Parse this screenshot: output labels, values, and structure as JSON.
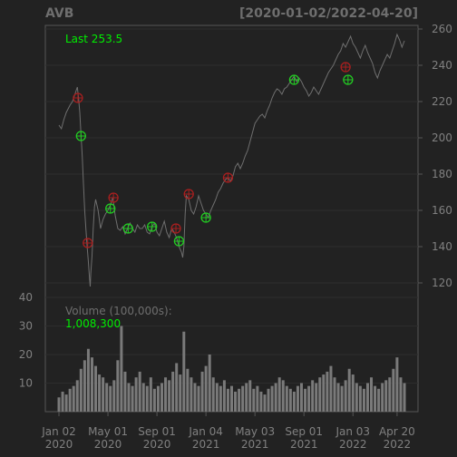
{
  "chart_data": {
    "type": "line",
    "title": "AVB",
    "date_range": "[2020-01-02/2022-04-20]",
    "last_label": "Last 253.5",
    "volume_label": "Volume (100,000s):",
    "volume_last": "1,008,300",
    "x_ticks": [
      {
        "top": "Jan 02",
        "bottom": "2020",
        "x": 0
      },
      {
        "top": "May 01",
        "bottom": "2020",
        "x": 4
      },
      {
        "top": "Sep 01",
        "bottom": "2020",
        "x": 8
      },
      {
        "top": "Jan 04",
        "bottom": "2021",
        "x": 12
      },
      {
        "top": "May 03",
        "bottom": "2021",
        "x": 16
      },
      {
        "top": "Sep 01",
        "bottom": "2021",
        "x": 20
      },
      {
        "top": "Jan 03",
        "bottom": "2022",
        "x": 24
      },
      {
        "top": "Apr 20",
        "bottom": "2022",
        "x": 27.6
      }
    ],
    "price_axis": {
      "ylim": [
        112,
        262
      ],
      "ticks": [
        120,
        140,
        160,
        180,
        200,
        220,
        240,
        260
      ]
    },
    "volume_axis": {
      "ylim": [
        0,
        40
      ],
      "ticks": [
        10,
        20,
        30,
        40
      ]
    },
    "price_series": [
      [
        0,
        207
      ],
      [
        0.2,
        205
      ],
      [
        0.4,
        210
      ],
      [
        0.6,
        214
      ],
      [
        0.9,
        218
      ],
      [
        1.1,
        220
      ],
      [
        1.3,
        224
      ],
      [
        1.5,
        228
      ],
      [
        1.6,
        222
      ],
      [
        1.7,
        214
      ],
      [
        1.8,
        202
      ],
      [
        1.9,
        190
      ],
      [
        2.0,
        175
      ],
      [
        2.1,
        160
      ],
      [
        2.2,
        150
      ],
      [
        2.3,
        140
      ],
      [
        2.4,
        132
      ],
      [
        2.5,
        122
      ],
      [
        2.55,
        118
      ],
      [
        2.6,
        125
      ],
      [
        2.7,
        135
      ],
      [
        2.8,
        150
      ],
      [
        2.9,
        162
      ],
      [
        3.0,
        166
      ],
      [
        3.2,
        160
      ],
      [
        3.4,
        150
      ],
      [
        3.6,
        155
      ],
      [
        3.8,
        158
      ],
      [
        4.0,
        160
      ],
      [
        4.2,
        163
      ],
      [
        4.4,
        167
      ],
      [
        4.6,
        157
      ],
      [
        4.8,
        150
      ],
      [
        5.0,
        149
      ],
      [
        5.2,
        151
      ],
      [
        5.4,
        147
      ],
      [
        5.6,
        150
      ],
      [
        5.8,
        153
      ],
      [
        6.0,
        150
      ],
      [
        6.2,
        148
      ],
      [
        6.4,
        152
      ],
      [
        6.6,
        150
      ],
      [
        6.8,
        150
      ],
      [
        7.0,
        152
      ],
      [
        7.2,
        148
      ],
      [
        7.4,
        147
      ],
      [
        7.6,
        151
      ],
      [
        7.8,
        153
      ],
      [
        8.0,
        148
      ],
      [
        8.2,
        146
      ],
      [
        8.4,
        150
      ],
      [
        8.6,
        154
      ],
      [
        8.8,
        148
      ],
      [
        9.0,
        145
      ],
      [
        9.2,
        150
      ],
      [
        9.4,
        148
      ],
      [
        9.6,
        145
      ],
      [
        9.8,
        140
      ],
      [
        10.0,
        137
      ],
      [
        10.1,
        134
      ],
      [
        10.2,
        140
      ],
      [
        10.3,
        158
      ],
      [
        10.4,
        168
      ],
      [
        10.6,
        166
      ],
      [
        10.8,
        160
      ],
      [
        11.0,
        158
      ],
      [
        11.2,
        162
      ],
      [
        11.4,
        168
      ],
      [
        11.6,
        164
      ],
      [
        11.8,
        160
      ],
      [
        12.0,
        158
      ],
      [
        12.2,
        156
      ],
      [
        12.4,
        160
      ],
      [
        12.6,
        163
      ],
      [
        12.8,
        166
      ],
      [
        13.0,
        170
      ],
      [
        13.2,
        172
      ],
      [
        13.4,
        175
      ],
      [
        13.6,
        177
      ],
      [
        13.8,
        178
      ],
      [
        14.0,
        176
      ],
      [
        14.2,
        179
      ],
      [
        14.4,
        184
      ],
      [
        14.6,
        186
      ],
      [
        14.8,
        183
      ],
      [
        15.0,
        186
      ],
      [
        15.2,
        190
      ],
      [
        15.4,
        193
      ],
      [
        15.6,
        198
      ],
      [
        15.8,
        203
      ],
      [
        16.0,
        208
      ],
      [
        16.2,
        210
      ],
      [
        16.4,
        212
      ],
      [
        16.6,
        213
      ],
      [
        16.8,
        211
      ],
      [
        17.0,
        215
      ],
      [
        17.2,
        218
      ],
      [
        17.4,
        222
      ],
      [
        17.6,
        225
      ],
      [
        17.8,
        227
      ],
      [
        18.0,
        226
      ],
      [
        18.2,
        224
      ],
      [
        18.4,
        227
      ],
      [
        18.6,
        228
      ],
      [
        18.8,
        230
      ],
      [
        19.0,
        232
      ],
      [
        19.2,
        234
      ],
      [
        19.4,
        231
      ],
      [
        19.6,
        233
      ],
      [
        19.8,
        231
      ],
      [
        20.0,
        228
      ],
      [
        20.2,
        226
      ],
      [
        20.4,
        223
      ],
      [
        20.6,
        225
      ],
      [
        20.8,
        228
      ],
      [
        21.0,
        226
      ],
      [
        21.2,
        224
      ],
      [
        21.4,
        227
      ],
      [
        21.6,
        230
      ],
      [
        21.8,
        233
      ],
      [
        22.0,
        236
      ],
      [
        22.2,
        238
      ],
      [
        22.4,
        240
      ],
      [
        22.6,
        243
      ],
      [
        22.8,
        246
      ],
      [
        23.0,
        248
      ],
      [
        23.2,
        252
      ],
      [
        23.4,
        250
      ],
      [
        23.6,
        253
      ],
      [
        23.8,
        256
      ],
      [
        24.0,
        252
      ],
      [
        24.2,
        250
      ],
      [
        24.4,
        247
      ],
      [
        24.6,
        244
      ],
      [
        24.8,
        248
      ],
      [
        25.0,
        251
      ],
      [
        25.2,
        247
      ],
      [
        25.4,
        244
      ],
      [
        25.6,
        241
      ],
      [
        25.8,
        236
      ],
      [
        26.0,
        233
      ],
      [
        26.2,
        237
      ],
      [
        26.4,
        240
      ],
      [
        26.6,
        243
      ],
      [
        26.8,
        246
      ],
      [
        27.0,
        244
      ],
      [
        27.2,
        248
      ],
      [
        27.4,
        252
      ],
      [
        27.6,
        257
      ],
      [
        27.8,
        254
      ],
      [
        28.0,
        250
      ],
      [
        28.2,
        253.5
      ]
    ],
    "volume_series": [
      [
        0,
        5
      ],
      [
        0.3,
        7
      ],
      [
        0.6,
        6
      ],
      [
        0.9,
        8
      ],
      [
        1.2,
        9
      ],
      [
        1.5,
        11
      ],
      [
        1.8,
        15
      ],
      [
        2.1,
        18
      ],
      [
        2.4,
        22
      ],
      [
        2.7,
        19
      ],
      [
        3.0,
        16
      ],
      [
        3.3,
        13
      ],
      [
        3.6,
        12
      ],
      [
        3.9,
        10
      ],
      [
        4.2,
        9
      ],
      [
        4.5,
        11
      ],
      [
        4.8,
        18
      ],
      [
        5.1,
        30
      ],
      [
        5.4,
        14
      ],
      [
        5.7,
        10
      ],
      [
        6.0,
        9
      ],
      [
        6.3,
        12
      ],
      [
        6.6,
        14
      ],
      [
        6.9,
        10
      ],
      [
        7.2,
        9
      ],
      [
        7.5,
        12
      ],
      [
        7.8,
        8
      ],
      [
        8.1,
        9
      ],
      [
        8.4,
        10
      ],
      [
        8.7,
        12
      ],
      [
        9.0,
        11
      ],
      [
        9.3,
        14
      ],
      [
        9.6,
        17
      ],
      [
        9.9,
        13
      ],
      [
        10.2,
        28
      ],
      [
        10.5,
        15
      ],
      [
        10.8,
        12
      ],
      [
        11.1,
        10
      ],
      [
        11.4,
        9
      ],
      [
        11.7,
        14
      ],
      [
        12.0,
        16
      ],
      [
        12.3,
        20
      ],
      [
        12.6,
        12
      ],
      [
        12.9,
        10
      ],
      [
        13.2,
        9
      ],
      [
        13.5,
        11
      ],
      [
        13.8,
        8
      ],
      [
        14.1,
        9
      ],
      [
        14.4,
        7
      ],
      [
        14.7,
        8
      ],
      [
        15.0,
        9
      ],
      [
        15.3,
        10
      ],
      [
        15.6,
        11
      ],
      [
        15.9,
        8
      ],
      [
        16.2,
        9
      ],
      [
        16.5,
        7
      ],
      [
        16.8,
        6
      ],
      [
        17.1,
        8
      ],
      [
        17.4,
        9
      ],
      [
        17.7,
        10
      ],
      [
        18.0,
        12
      ],
      [
        18.3,
        11
      ],
      [
        18.6,
        9
      ],
      [
        18.9,
        8
      ],
      [
        19.2,
        7
      ],
      [
        19.5,
        9
      ],
      [
        19.8,
        10
      ],
      [
        20.1,
        8
      ],
      [
        20.4,
        9
      ],
      [
        20.7,
        11
      ],
      [
        21.0,
        10
      ],
      [
        21.3,
        12
      ],
      [
        21.6,
        13
      ],
      [
        21.9,
        14
      ],
      [
        22.2,
        16
      ],
      [
        22.5,
        12
      ],
      [
        22.8,
        10
      ],
      [
        23.1,
        9
      ],
      [
        23.4,
        11
      ],
      [
        23.7,
        15
      ],
      [
        24.0,
        13
      ],
      [
        24.3,
        10
      ],
      [
        24.6,
        9
      ],
      [
        24.9,
        8
      ],
      [
        25.2,
        10
      ],
      [
        25.5,
        12
      ],
      [
        25.8,
        9
      ],
      [
        26.1,
        8
      ],
      [
        26.4,
        10
      ],
      [
        26.7,
        11
      ],
      [
        27.0,
        12
      ],
      [
        27.3,
        15
      ],
      [
        27.6,
        19
      ],
      [
        27.9,
        12
      ],
      [
        28.2,
        10
      ]
    ],
    "sell_signals": [
      [
        1.55,
        222
      ],
      [
        2.35,
        142
      ],
      [
        4.45,
        167
      ],
      [
        9.55,
        150
      ],
      [
        10.6,
        169
      ],
      [
        13.8,
        178
      ],
      [
        23.4,
        239
      ]
    ],
    "buy_signals": [
      [
        1.8,
        201
      ],
      [
        4.2,
        161
      ],
      [
        5.65,
        150
      ],
      [
        7.6,
        151
      ],
      [
        9.8,
        143
      ],
      [
        12.0,
        156
      ],
      [
        19.2,
        232
      ],
      [
        23.6,
        232
      ]
    ],
    "colors": {
      "background": "#222222",
      "price_line": "#6f6f6f",
      "volume_bar": "#7a7a7a",
      "grid": "#2d2d2d",
      "frame": "#555555",
      "buy": "#22cc22",
      "sell": "#aa1f1f",
      "highlight_text": "#00ee00"
    }
  }
}
